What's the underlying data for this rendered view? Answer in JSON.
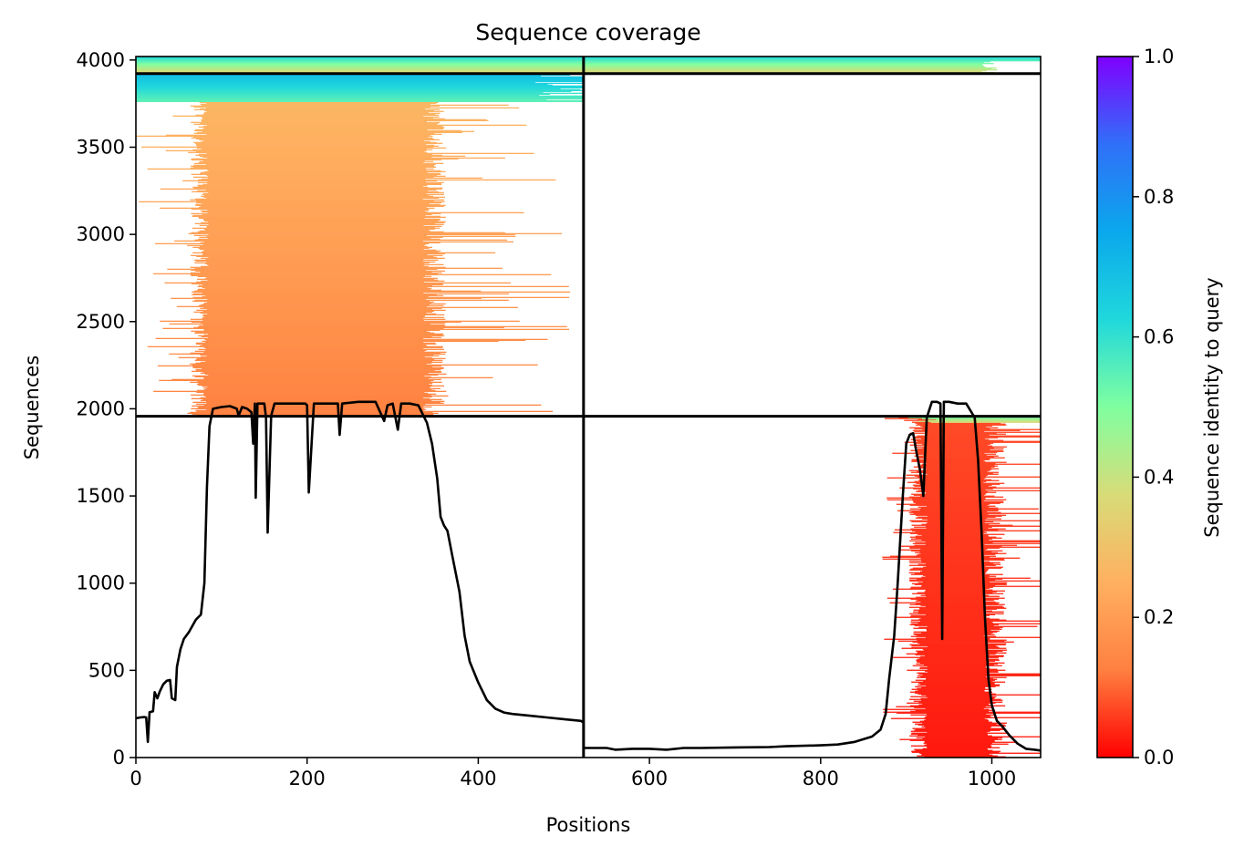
{
  "chart_data": {
    "type": "heatmap",
    "title": "Sequence coverage",
    "xlabel": "Positions",
    "ylabel": "Sequences",
    "colorbar_label": "Sequence identity to query",
    "xlim": [
      0,
      1057
    ],
    "ylim": [
      0,
      4020
    ],
    "x_ticks": [
      0,
      200,
      400,
      600,
      800,
      1000
    ],
    "y_ticks": [
      0,
      500,
      1000,
      1500,
      2000,
      2500,
      3000,
      3500,
      4000
    ],
    "colorbar_range": [
      0,
      1
    ],
    "colorbar_ticks": [
      0.0,
      0.2,
      0.4,
      0.6,
      0.8,
      1.0
    ],
    "colormap": [
      "#ff0000",
      "#ff8040",
      "#ffb060",
      "#d8dc78",
      "#80ffa0",
      "#20d8dc",
      "#0aa8ec",
      "#3070f8",
      "#8000ff"
    ],
    "chain_boundary_x": 523,
    "block_boundaries_y": [
      1957,
      3922
    ],
    "line_color": "#000000",
    "blocks": [
      {
        "name": "chain A block",
        "x_start": 0,
        "x_end": 523,
        "y_start": 1957,
        "y_end": 3922,
        "dense_span": [
          85,
          335
        ],
        "ragged_left_max": 0,
        "ragged_right_max": 520,
        "identity_bottom": 0.13,
        "identity_top": 0.28,
        "high_identity_band": {
          "y_start": 3760,
          "y_end": 3922,
          "x_start": 0,
          "x_end": 523,
          "identity": 0.62
        }
      },
      {
        "name": "chain B block",
        "x_start": 523,
        "x_end": 1057,
        "y_start": 0,
        "y_end": 1957,
        "dense_span": [
          925,
          990
        ],
        "ragged_left_max": 870,
        "ragged_right_max": 1130,
        "identity_bottom": 0.02,
        "identity_top": 0.07,
        "high_identity_band": {
          "y_start": 1925,
          "y_end": 1957,
          "x_start": 898,
          "x_end": 1057,
          "identity": 0.45
        }
      },
      {
        "name": "full-length top block",
        "x_start": 0,
        "x_end": 1057,
        "y_start": 3922,
        "y_end": 4020,
        "identity": 0.4
      }
    ],
    "coverage": [
      [
        0,
        225
      ],
      [
        5,
        230
      ],
      [
        10,
        232
      ],
      [
        12,
        230
      ],
      [
        14,
        90
      ],
      [
        16,
        260
      ],
      [
        20,
        265
      ],
      [
        22,
        375
      ],
      [
        25,
        340
      ],
      [
        28,
        380
      ],
      [
        32,
        420
      ],
      [
        36,
        440
      ],
      [
        40,
        445
      ],
      [
        42,
        340
      ],
      [
        46,
        330
      ],
      [
        48,
        520
      ],
      [
        52,
        620
      ],
      [
        56,
        680
      ],
      [
        62,
        720
      ],
      [
        70,
        790
      ],
      [
        76,
        820
      ],
      [
        80,
        1000
      ],
      [
        83,
        1550
      ],
      [
        86,
        1900
      ],
      [
        90,
        2000
      ],
      [
        100,
        2010
      ],
      [
        110,
        2015
      ],
      [
        118,
        2000
      ],
      [
        120,
        1960
      ],
      [
        124,
        2010
      ],
      [
        130,
        2000
      ],
      [
        135,
        1980
      ],
      [
        137,
        1800
      ],
      [
        139,
        2030
      ],
      [
        140,
        1490
      ],
      [
        142,
        2030
      ],
      [
        146,
        2030
      ],
      [
        150,
        2030
      ],
      [
        152,
        1950
      ],
      [
        154,
        1290
      ],
      [
        158,
        1960
      ],
      [
        162,
        2030
      ],
      [
        180,
        2030
      ],
      [
        198,
        2030
      ],
      [
        200,
        2020
      ],
      [
        202,
        1520
      ],
      [
        206,
        1860
      ],
      [
        208,
        2030
      ],
      [
        220,
        2030
      ],
      [
        236,
        2030
      ],
      [
        238,
        1850
      ],
      [
        241,
        2030
      ],
      [
        260,
        2040
      ],
      [
        280,
        2040
      ],
      [
        290,
        1930
      ],
      [
        294,
        2020
      ],
      [
        300,
        2030
      ],
      [
        306,
        1880
      ],
      [
        310,
        2030
      ],
      [
        320,
        2030
      ],
      [
        330,
        2020
      ],
      [
        336,
        1960
      ],
      [
        340,
        1920
      ],
      [
        346,
        1800
      ],
      [
        352,
        1600
      ],
      [
        356,
        1380
      ],
      [
        360,
        1330
      ],
      [
        364,
        1300
      ],
      [
        370,
        1150
      ],
      [
        378,
        950
      ],
      [
        384,
        700
      ],
      [
        390,
        550
      ],
      [
        400,
        430
      ],
      [
        410,
        330
      ],
      [
        420,
        280
      ],
      [
        430,
        258
      ],
      [
        440,
        250
      ],
      [
        460,
        240
      ],
      [
        480,
        230
      ],
      [
        500,
        220
      ],
      [
        520,
        210
      ],
      [
        523,
        200
      ],
      [
        523,
        55
      ],
      [
        550,
        55
      ],
      [
        560,
        45
      ],
      [
        580,
        50
      ],
      [
        600,
        50
      ],
      [
        620,
        45
      ],
      [
        640,
        55
      ],
      [
        660,
        55
      ],
      [
        700,
        58
      ],
      [
        740,
        60
      ],
      [
        760,
        65
      ],
      [
        800,
        70
      ],
      [
        820,
        75
      ],
      [
        840,
        90
      ],
      [
        860,
        120
      ],
      [
        870,
        160
      ],
      [
        876,
        250
      ],
      [
        880,
        450
      ],
      [
        886,
        700
      ],
      [
        890,
        1000
      ],
      [
        896,
        1500
      ],
      [
        900,
        1800
      ],
      [
        904,
        1850
      ],
      [
        908,
        1860
      ],
      [
        912,
        1750
      ],
      [
        916,
        1650
      ],
      [
        920,
        1500
      ],
      [
        924,
        1950
      ],
      [
        930,
        2040
      ],
      [
        936,
        2040
      ],
      [
        940,
        2030
      ],
      [
        942,
        680
      ],
      [
        944,
        2040
      ],
      [
        950,
        2040
      ],
      [
        960,
        2030
      ],
      [
        970,
        2030
      ],
      [
        980,
        1950
      ],
      [
        984,
        1700
      ],
      [
        988,
        1300
      ],
      [
        992,
        800
      ],
      [
        996,
        450
      ],
      [
        1000,
        300
      ],
      [
        1006,
        210
      ],
      [
        1012,
        180
      ],
      [
        1020,
        130
      ],
      [
        1030,
        80
      ],
      [
        1040,
        50
      ],
      [
        1050,
        45
      ],
      [
        1057,
        40
      ]
    ]
  }
}
